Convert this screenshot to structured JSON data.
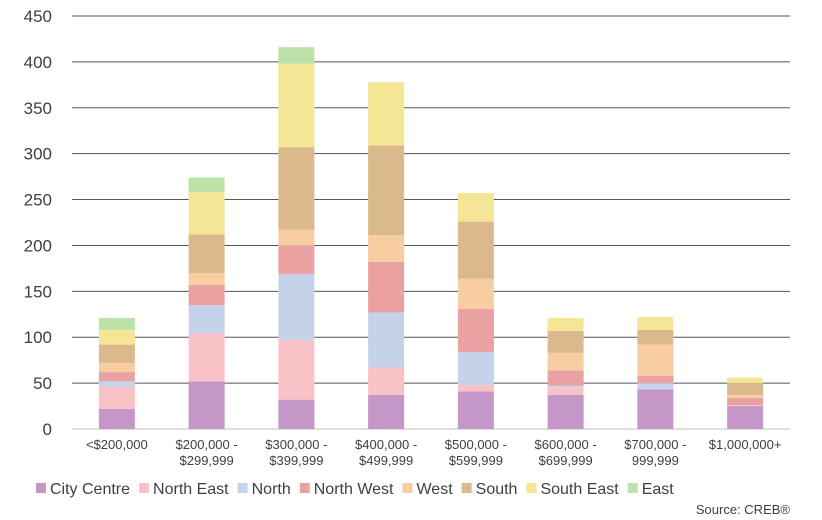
{
  "chart_data": {
    "type": "bar",
    "stacked": true,
    "categories": [
      [
        "<$200,000"
      ],
      [
        "$200,000 -",
        "$299,999"
      ],
      [
        "$300,000 -",
        "$399,999"
      ],
      [
        "$400,000 -",
        "$499,999"
      ],
      [
        "$500,000 -",
        "$599,999"
      ],
      [
        "$600,000 -",
        "$699,999"
      ],
      [
        "$700,000 -",
        "999,999"
      ],
      [
        "$1,000,000+"
      ]
    ],
    "series": [
      {
        "name": "City Centre",
        "color": "#c497c8",
        "values": [
          22,
          52,
          32,
          37,
          41,
          37,
          43,
          25
        ]
      },
      {
        "name": "North East",
        "color": "#f9c2c6",
        "values": [
          24,
          52,
          65,
          30,
          7,
          8,
          0,
          1
        ]
      },
      {
        "name": "North",
        "color": "#c5d3ea",
        "values": [
          6,
          31,
          72,
          60,
          36,
          2,
          7,
          0
        ]
      },
      {
        "name": "North West",
        "color": "#e9a1a1",
        "values": [
          10,
          22,
          31,
          55,
          47,
          17,
          8,
          8
        ]
      },
      {
        "name": "West",
        "color": "#f9cda2",
        "values": [
          10,
          13,
          17,
          29,
          33,
          19,
          34,
          3
        ]
      },
      {
        "name": "South",
        "color": "#dbb98c",
        "values": [
          20,
          42,
          90,
          98,
          62,
          24,
          16,
          13
        ]
      },
      {
        "name": "South East",
        "color": "#f3e795",
        "values": [
          16,
          46,
          91,
          69,
          31,
          14,
          14,
          6
        ]
      },
      {
        "name": "East",
        "color": "#bde2a8",
        "values": [
          13,
          16,
          18,
          0,
          0,
          0,
          0,
          0
        ]
      }
    ],
    "ylim": [
      0,
      450
    ],
    "yticks": [
      0,
      50,
      100,
      150,
      200,
      250,
      300,
      350,
      400,
      450
    ],
    "grid": true,
    "legend_position": "bottom",
    "source": "Source: CREB®"
  }
}
